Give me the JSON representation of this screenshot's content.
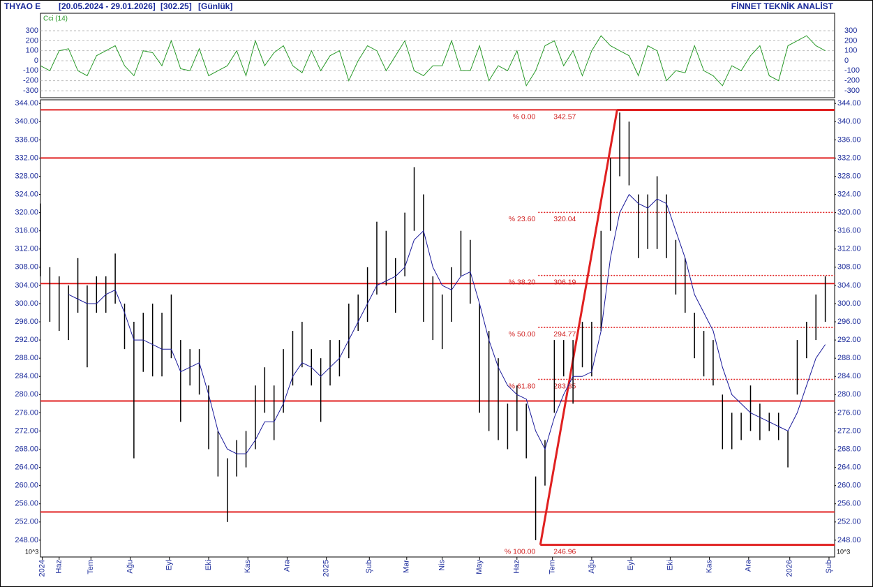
{
  "chart_data": {
    "type": "range-bar",
    "header": {
      "symbol": "THYAO E",
      "range": "[20.05.2024 - 29.01.2026]",
      "last": "[302.25]",
      "period": "[Günlük]",
      "brand": "FİNNET TEKNİK ANALİST"
    },
    "unit_note": "10^3",
    "xlim": [
      0,
      425
    ],
    "xticks": [
      {
        "value": 1,
        "label": "2024"
      },
      {
        "value": 10,
        "label": "Haz"
      },
      {
        "value": 27,
        "label": "Tem"
      },
      {
        "value": 48,
        "label": "Ağu"
      },
      {
        "value": 69,
        "label": "Eyl"
      },
      {
        "value": 90,
        "label": "Eki"
      },
      {
        "value": 111,
        "label": "Kas"
      },
      {
        "value": 132,
        "label": "Ara"
      },
      {
        "value": 153,
        "label": "2025"
      },
      {
        "value": 176,
        "label": "Şub"
      },
      {
        "value": 196,
        "label": "Mar"
      },
      {
        "value": 215,
        "label": "Nis"
      },
      {
        "value": 235,
        "label": "May"
      },
      {
        "value": 255,
        "label": "Haz"
      },
      {
        "value": 274,
        "label": "Tem"
      },
      {
        "value": 295,
        "label": "Ağu"
      },
      {
        "value": 316,
        "label": "Eyl"
      },
      {
        "value": 337,
        "label": "Eki"
      },
      {
        "value": 358,
        "label": "Kas"
      },
      {
        "value": 379,
        "label": "Ara"
      },
      {
        "value": 401,
        "label": "2026"
      },
      {
        "value": 422,
        "label": "Şub"
      }
    ],
    "ylim": [
      244.3,
      344.8
    ],
    "yticks": [
      {
        "value": 248,
        "label": "248.00"
      },
      {
        "value": 252,
        "label": "252.00"
      },
      {
        "value": 256,
        "label": "256.00"
      },
      {
        "value": 260,
        "label": "260.00"
      },
      {
        "value": 264,
        "label": "264.00"
      },
      {
        "value": 268,
        "label": "268.00"
      },
      {
        "value": 272,
        "label": "272.00"
      },
      {
        "value": 276,
        "label": "276.00"
      },
      {
        "value": 280,
        "label": "280.00"
      },
      {
        "value": 284,
        "label": "284.00"
      },
      {
        "value": 288,
        "label": "288.00"
      },
      {
        "value": 292,
        "label": "292.00"
      },
      {
        "value": 296,
        "label": "296.00"
      },
      {
        "value": 300,
        "label": "300.00"
      },
      {
        "value": 304,
        "label": "304.00"
      },
      {
        "value": 308,
        "label": "308.00"
      },
      {
        "value": 312,
        "label": "312.00"
      },
      {
        "value": 316,
        "label": "316.00"
      },
      {
        "value": 320,
        "label": "320.00"
      },
      {
        "value": 324,
        "label": "324.00"
      },
      {
        "value": 328,
        "label": "328.00"
      },
      {
        "value": 332,
        "label": "332.00"
      },
      {
        "value": 336,
        "label": "336.00"
      },
      {
        "value": 340,
        "label": "340.00"
      },
      {
        "value": 344,
        "label": "344.00"
      }
    ],
    "x": [
      0,
      5,
      10,
      15,
      20,
      25,
      30,
      35,
      40,
      45,
      50,
      55,
      60,
      65,
      70,
      75,
      80,
      85,
      90,
      95,
      100,
      105,
      110,
      115,
      120,
      125,
      130,
      135,
      140,
      145,
      150,
      155,
      160,
      165,
      170,
      175,
      180,
      185,
      190,
      195,
      200,
      205,
      210,
      215,
      220,
      225,
      230,
      235,
      240,
      245,
      250,
      255,
      260,
      265,
      270,
      275,
      280,
      285,
      290,
      295,
      300,
      305,
      310,
      315,
      320,
      325,
      330,
      335,
      340,
      345,
      350,
      355,
      360,
      365,
      370,
      375,
      380,
      385,
      390,
      395,
      400,
      405,
      410,
      415,
      420
    ],
    "high": [
      322,
      308,
      306,
      304,
      310,
      304,
      306,
      306,
      311,
      300,
      296,
      298,
      300,
      298,
      302,
      292,
      290,
      290,
      282,
      272,
      266,
      270,
      272,
      282,
      286,
      282,
      290,
      294,
      296,
      290,
      288,
      292,
      292,
      300,
      302,
      308,
      318,
      316,
      310,
      320,
      330,
      324,
      306,
      302,
      308,
      316,
      314,
      300,
      294,
      288,
      278,
      282,
      278,
      262,
      270,
      292,
      292,
      292,
      296,
      296,
      316,
      332,
      342,
      340,
      324,
      324,
      328,
      324,
      314,
      310,
      298,
      294,
      292,
      280,
      276,
      276,
      282,
      278,
      276,
      276,
      272,
      292,
      296,
      302,
      306
    ],
    "low": [
      306,
      296,
      294,
      292,
      298,
      286,
      298,
      298,
      300,
      290,
      266,
      285,
      284,
      284,
      288,
      274,
      282,
      280,
      268,
      262,
      252,
      262,
      264,
      268,
      276,
      270,
      276,
      282,
      286,
      282,
      274,
      282,
      284,
      288,
      294,
      296,
      302,
      304,
      298,
      306,
      316,
      296,
      292,
      290,
      296,
      306,
      300,
      276,
      272,
      270,
      268,
      272,
      266,
      248,
      260,
      276,
      284,
      278,
      286,
      284,
      294,
      316,
      328,
      326,
      310,
      312,
      312,
      310,
      302,
      298,
      288,
      284,
      282,
      268,
      268,
      270,
      272,
      270,
      272,
      270,
      264,
      280,
      288,
      292,
      296
    ],
    "ma": {
      "color": "#1a1a9a",
      "values": [
        null,
        null,
        null,
        302,
        301,
        300,
        300,
        302,
        303,
        298,
        292,
        292,
        291,
        290,
        290,
        285,
        286,
        287,
        280,
        272,
        268,
        267,
        267,
        270,
        274,
        274,
        278,
        284,
        287,
        286,
        284,
        286,
        288,
        292,
        296,
        300,
        304,
        305,
        306,
        308,
        314,
        316,
        308,
        304,
        303,
        306,
        307,
        300,
        292,
        286,
        282,
        280,
        279,
        272,
        268,
        275,
        280,
        284,
        284,
        285,
        294,
        310,
        320,
        324,
        322,
        321,
        323,
        322,
        316,
        310,
        302,
        298,
        294,
        286,
        280,
        278,
        276,
        275,
        274,
        273,
        272,
        276,
        282,
        288,
        291
      ]
    },
    "horizontal_lines": [
      342.6,
      332.0,
      304.4,
      278.6,
      254.2
    ],
    "fibonacci": {
      "start_x": 267.5,
      "end_x": 308.6,
      "levels": [
        {
          "percent": {
            "value": 0,
            "label": "% 0.00"
          },
          "price": 342.57
        },
        {
          "percent": {
            "value": 23.6,
            "label": "% 23.60"
          },
          "price": 320.04
        },
        {
          "percent": {
            "value": 38.2,
            "label": "% 38.20"
          },
          "price": 306.19
        },
        {
          "percent": {
            "value": 50,
            "label": "% 50.00"
          },
          "price": 294.77
        },
        {
          "percent": {
            "value": 61.8,
            "label": "% 61.80"
          },
          "price": 283.35
        },
        {
          "percent": {
            "value": 100,
            "label": "% 100.00"
          },
          "price": 246.96
        }
      ]
    },
    "cci": {
      "title": "Cci (14)",
      "color": "#2a9a2a",
      "ylim": [
        -370,
        370
      ],
      "yticks": [
        -300,
        -200,
        -100,
        0,
        100,
        200,
        300
      ],
      "values": [
        -50,
        -100,
        100,
        120,
        -100,
        -150,
        50,
        100,
        150,
        -50,
        -150,
        100,
        80,
        -50,
        200,
        -80,
        -100,
        120,
        -150,
        -100,
        -50,
        100,
        -150,
        200,
        -50,
        80,
        150,
        -50,
        -120,
        100,
        -100,
        50,
        100,
        -200,
        0,
        150,
        100,
        -100,
        50,
        200,
        -100,
        -150,
        -50,
        -50,
        200,
        -100,
        -100,
        150,
        -200,
        -50,
        -100,
        100,
        -250,
        -100,
        150,
        200,
        -50,
        100,
        -150,
        100,
        250,
        150,
        100,
        50,
        -150,
        150,
        100,
        -200,
        -100,
        -120,
        150,
        -100,
        -150,
        -250,
        -50,
        -100,
        50,
        150,
        -150,
        -200,
        150,
        200,
        250,
        150,
        100
      ]
    }
  }
}
